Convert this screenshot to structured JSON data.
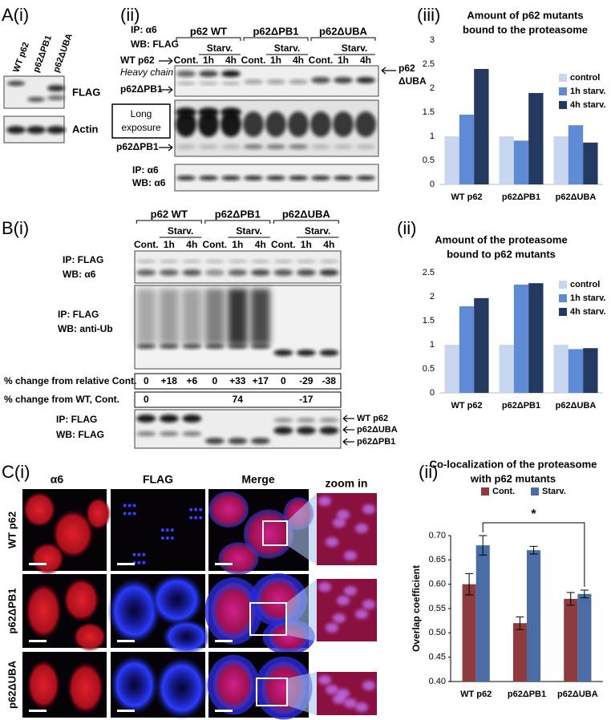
{
  "panel_labels": [
    "A(i)",
    "(ii)",
    "(iii)",
    "B(i)",
    "(ii)",
    "C(i)",
    "(ii)"
  ],
  "a_i": {
    "lanes": [
      "WT p62",
      "p62ΔPB1",
      "p62ΔUBA"
    ],
    "blots": [
      "FLAG",
      "Actin"
    ]
  },
  "a_ii": {
    "ip": "IP: α6",
    "wb": "WB: FLAG",
    "groups": [
      "p62 WT",
      "p62ΔPB1",
      "p62ΔUBA"
    ],
    "starv": "Starv.",
    "lanes": [
      "Cont.",
      "1h",
      "4h"
    ],
    "left_labels": [
      "WT p62",
      "Heavy chain",
      "p62ΔPB1"
    ],
    "right_label": [
      "p62",
      "ΔUBA"
    ],
    "long_exposure": [
      "Long",
      "exposure"
    ],
    "long_label": "p62ΔPB1",
    "bottom_ip": "IP:   α6",
    "bottom_wb": "WB: α6"
  },
  "b_i": {
    "groups": [
      "p62 WT",
      "p62ΔPB1",
      "p62ΔUBA"
    ],
    "starv": "Starv.",
    "lanes": [
      "Cont.",
      "1h",
      "4h"
    ],
    "row_labels": [
      [
        "IP: FLAG",
        "WB: α6"
      ],
      [
        "IP: FLAG",
        "WB: anti-Ub"
      ],
      [
        "IP:   FLAG",
        "WB: FLAG"
      ]
    ],
    "change_relative": {
      "label": "% change from relative Cont.",
      "values": [
        "0",
        "+18",
        "+6",
        "0",
        "+33",
        "+17",
        "0",
        "-29",
        "-38"
      ]
    },
    "change_wt": {
      "label": "% change from WT, Cont.",
      "values": [
        "0",
        "74",
        "-17"
      ]
    },
    "right_labels": [
      "WT p62",
      "p62ΔUBA",
      "p62ΔPB1"
    ]
  },
  "c_i": {
    "columns": [
      "α6",
      "FLAG",
      "Merge",
      "zoom in"
    ],
    "rows": [
      "WT p62",
      "p62ΔPB1",
      "p62ΔUBA"
    ]
  },
  "chart_data": [
    {
      "type": "bar",
      "title": [
        "Amount of  p62 mutants",
        "bound to the proteasome"
      ],
      "categories": [
        "WT p62",
        "p62ΔPB1",
        "p62ΔUBA"
      ],
      "series": [
        {
          "name": "control",
          "color": "#c9d6ef",
          "values": [
            1,
            1,
            1
          ]
        },
        {
          "name": "1h starv.",
          "color": "#5f8ad6",
          "values": [
            1.45,
            0.91,
            1.23
          ]
        },
        {
          "name": "4h starv.",
          "color": "#24395f",
          "values": [
            2.4,
            1.9,
            0.87
          ]
        }
      ],
      "ylim": [
        0,
        3
      ],
      "yticks": [
        0,
        0.5,
        1,
        1.5,
        2,
        2.5,
        3
      ],
      "grid": false,
      "legend": "right",
      "left_axis": false
    },
    {
      "type": "bar",
      "title": [
        "Amount of the proteasome",
        "bound to p62 mutants"
      ],
      "categories": [
        "WT p62",
        "p62ΔPB1",
        "p62ΔUBA"
      ],
      "series": [
        {
          "name": "control",
          "color": "#c9d6ef",
          "values": [
            1,
            1,
            1
          ]
        },
        {
          "name": "1h starv.",
          "color": "#5f8ad6",
          "values": [
            1.8,
            2.25,
            0.91
          ]
        },
        {
          "name": "4h starv.",
          "color": "#24395f",
          "values": [
            1.97,
            2.28,
            0.93
          ]
        }
      ],
      "ylim": [
        0,
        2.5
      ],
      "yticks": [
        0,
        0.5,
        1,
        1.5,
        2,
        2.5
      ],
      "grid": false,
      "legend": "right",
      "left_axis": false
    },
    {
      "type": "bar",
      "title": [
        "Co-localization of the proteasome",
        "with p62 mutants"
      ],
      "ylabel": "Overlap coefficient",
      "categories": [
        "WT p62",
        "p62ΔPB1",
        "p62ΔUBA"
      ],
      "series": [
        {
          "name": "Cont.",
          "color": "#8e3b3d",
          "values": [
            0.6,
            0.52,
            0.57
          ],
          "errors": [
            0.022,
            0.013,
            0.013
          ]
        },
        {
          "name": "Starv.",
          "color": "#4a6da6",
          "values": [
            0.68,
            0.67,
            0.58
          ],
          "errors": [
            0.02,
            0.008,
            0.008
          ]
        }
      ],
      "ylim": [
        0.4,
        0.7
      ],
      "yticks": [
        {
          "value": 0.4,
          "label": "0.40"
        },
        {
          "value": 0.45,
          "label": "0.45"
        },
        {
          "value": 0.5,
          "label": "0.50"
        },
        {
          "value": 0.55,
          "label": "0.55"
        },
        {
          "value": 0.6,
          "label": "0.60"
        },
        {
          "value": 0.65,
          "label": "0.65"
        },
        {
          "value": 0.7,
          "label": "0.70"
        }
      ],
      "grid": false,
      "legend": "top",
      "left_axis": true,
      "annotation": "*"
    }
  ]
}
